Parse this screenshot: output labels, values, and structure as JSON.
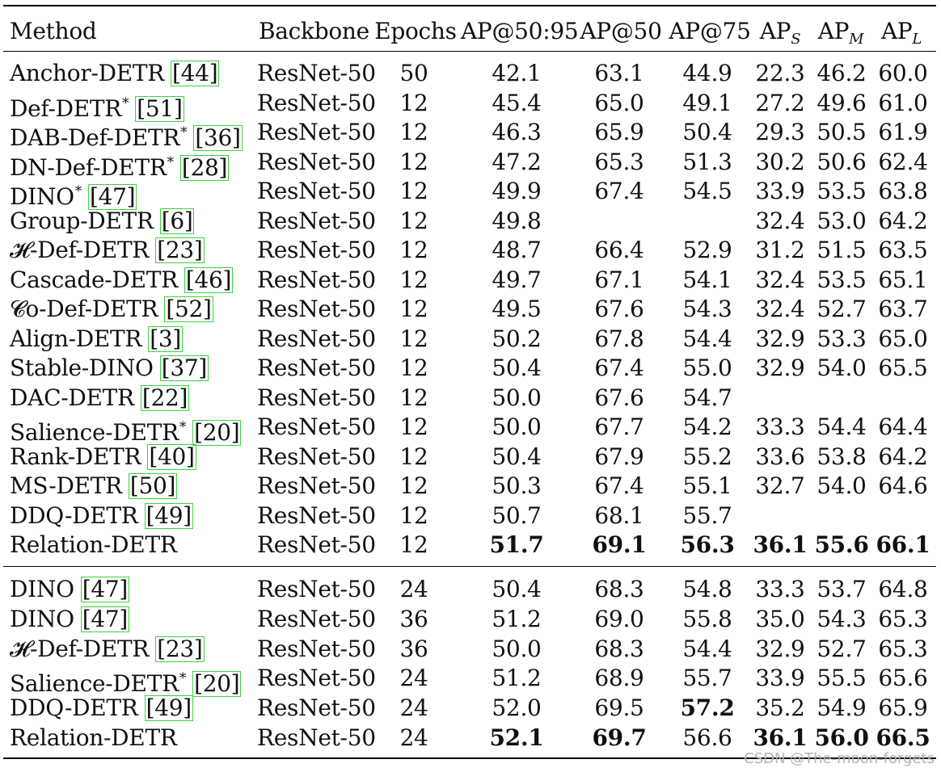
{
  "columns": {
    "method": "Method",
    "backbone": "Backbone",
    "epochs": "Epochs",
    "ap": "AP@50:95",
    "ap50": "AP@50",
    "ap75": "AP@75",
    "aps_base": "AP",
    "aps_sub": "S",
    "apm_base": "AP",
    "apm_sub": "M",
    "apl_base": "AP",
    "apl_sub": "L"
  },
  "group1": [
    {
      "method": "Anchor-DETR",
      "star": false,
      "ref": "44",
      "backbone": "ResNet-50",
      "epochs": "50",
      "ap": "42.1",
      "ap50": "63.1",
      "ap75": "44.9",
      "aps": "22.3",
      "apm": "46.2",
      "apl": "60.0"
    },
    {
      "method": "Def-DETR",
      "star": true,
      "ref": "51",
      "backbone": "ResNet-50",
      "epochs": "12",
      "ap": "45.4",
      "ap50": "65.0",
      "ap75": "49.1",
      "aps": "27.2",
      "apm": "49.6",
      "apl": "61.0"
    },
    {
      "method": "DAB-Def-DETR",
      "star": true,
      "ref": "36",
      "backbone": "ResNet-50",
      "epochs": "12",
      "ap": "46.3",
      "ap50": "65.9",
      "ap75": "50.4",
      "aps": "29.3",
      "apm": "50.5",
      "apl": "61.9"
    },
    {
      "method": "DN-Def-DETR",
      "star": true,
      "ref": "28",
      "backbone": "ResNet-50",
      "epochs": "12",
      "ap": "47.2",
      "ap50": "65.3",
      "ap75": "51.3",
      "aps": "30.2",
      "apm": "50.6",
      "apl": "62.4"
    },
    {
      "method": "DINO",
      "star": true,
      "ref": "47",
      "backbone": "ResNet-50",
      "epochs": "12",
      "ap": "49.9",
      "ap50": "67.4",
      "ap75": "54.5",
      "aps": "33.9",
      "apm": "53.5",
      "apl": "63.8"
    },
    {
      "method": "Group-DETR",
      "star": false,
      "ref": "6",
      "backbone": "ResNet-50",
      "epochs": "12",
      "ap": "49.8",
      "ap50": "",
      "ap75": "",
      "aps": "32.4",
      "apm": "53.0",
      "apl": "64.2"
    },
    {
      "method": "𝓗-Def-DETR",
      "star": false,
      "ref": "23",
      "backbone": "ResNet-50",
      "epochs": "12",
      "ap": "48.7",
      "ap50": "66.4",
      "ap75": "52.9",
      "aps": "31.2",
      "apm": "51.5",
      "apl": "63.5"
    },
    {
      "method": "Cascade-DETR",
      "star": false,
      "ref": "46",
      "backbone": "ResNet-50",
      "epochs": "12",
      "ap": "49.7",
      "ap50": "67.1",
      "ap75": "54.1",
      "aps": "32.4",
      "apm": "53.5",
      "apl": "65.1"
    },
    {
      "method": "𝓒o-Def-DETR",
      "star": false,
      "ref": "52",
      "backbone": "ResNet-50",
      "epochs": "12",
      "ap": "49.5",
      "ap50": "67.6",
      "ap75": "54.3",
      "aps": "32.4",
      "apm": "52.7",
      "apl": "63.7"
    },
    {
      "method": "Align-DETR",
      "star": false,
      "ref": "3",
      "backbone": "ResNet-50",
      "epochs": "12",
      "ap": "50.2",
      "ap50": "67.8",
      "ap75": "54.4",
      "aps": "32.9",
      "apm": "53.3",
      "apl": "65.0"
    },
    {
      "method": "Stable-DINO",
      "star": false,
      "ref": "37",
      "backbone": "ResNet-50",
      "epochs": "12",
      "ap": "50.4",
      "ap50": "67.4",
      "ap75": "55.0",
      "aps": "32.9",
      "apm": "54.0",
      "apl": "65.5"
    },
    {
      "method": "DAC-DETR",
      "star": false,
      "ref": "22",
      "backbone": "ResNet-50",
      "epochs": "12",
      "ap": "50.0",
      "ap50": "67.6",
      "ap75": "54.7",
      "aps": "",
      "apm": "",
      "apl": ""
    },
    {
      "method": "Salience-DETR",
      "star": true,
      "ref": "20",
      "backbone": "ResNet-50",
      "epochs": "12",
      "ap": "50.0",
      "ap50": "67.7",
      "ap75": "54.2",
      "aps": "33.3",
      "apm": "54.4",
      "apl": "64.4"
    },
    {
      "method": "Rank-DETR",
      "star": false,
      "ref": "40",
      "backbone": "ResNet-50",
      "epochs": "12",
      "ap": "50.4",
      "ap50": "67.9",
      "ap75": "55.2",
      "aps": "33.6",
      "apm": "53.8",
      "apl": "64.2"
    },
    {
      "method": "MS-DETR",
      "star": false,
      "ref": "50",
      "backbone": "ResNet-50",
      "epochs": "12",
      "ap": "50.3",
      "ap50": "67.4",
      "ap75": "55.1",
      "aps": "32.7",
      "apm": "54.0",
      "apl": "64.6"
    },
    {
      "method": "DDQ-DETR",
      "star": false,
      "ref": "49",
      "backbone": "ResNet-50",
      "epochs": "12",
      "ap": "50.7",
      "ap50": "68.1",
      "ap75": "55.7",
      "aps": "",
      "apm": "",
      "apl": ""
    },
    {
      "method": "Relation-DETR",
      "star": false,
      "ref": "",
      "backbone": "ResNet-50",
      "epochs": "12",
      "ap": "51.7",
      "ap50": "69.1",
      "ap75": "56.3",
      "aps": "36.1",
      "apm": "55.6",
      "apl": "66.1",
      "bold": [
        "ap",
        "ap50",
        "ap75",
        "aps",
        "apm",
        "apl"
      ]
    }
  ],
  "group2": [
    {
      "method": "DINO",
      "star": false,
      "ref": "47",
      "backbone": "ResNet-50",
      "epochs": "24",
      "ap": "50.4",
      "ap50": "68.3",
      "ap75": "54.8",
      "aps": "33.3",
      "apm": "53.7",
      "apl": "64.8"
    },
    {
      "method": "DINO",
      "star": false,
      "ref": "47",
      "backbone": "ResNet-50",
      "epochs": "36",
      "ap": "51.2",
      "ap50": "69.0",
      "ap75": "55.8",
      "aps": "35.0",
      "apm": "54.3",
      "apl": "65.3"
    },
    {
      "method": "𝓗-Def-DETR",
      "star": false,
      "ref": "23",
      "backbone": "ResNet-50",
      "epochs": "36",
      "ap": "50.0",
      "ap50": "68.3",
      "ap75": "54.4",
      "aps": "32.9",
      "apm": "52.7",
      "apl": "65.3"
    },
    {
      "method": "Salience-DETR",
      "star": true,
      "ref": "20",
      "backbone": "ResNet-50",
      "epochs": "24",
      "ap": "51.2",
      "ap50": "68.9",
      "ap75": "55.7",
      "aps": "33.9",
      "apm": "55.5",
      "apl": "65.6"
    },
    {
      "method": "DDQ-DETR",
      "star": false,
      "ref": "49",
      "backbone": "ResNet-50",
      "epochs": "24",
      "ap": "52.0",
      "ap50": "69.5",
      "ap75": "57.2",
      "aps": "35.2",
      "apm": "54.9",
      "apl": "65.9",
      "bold": [
        "ap75"
      ]
    },
    {
      "method": "Relation-DETR",
      "star": false,
      "ref": "",
      "backbone": "ResNet-50",
      "epochs": "24",
      "ap": "52.1",
      "ap50": "69.7",
      "ap75": "56.6",
      "aps": "36.1",
      "apm": "56.0",
      "apl": "66.5",
      "bold": [
        "ap",
        "ap50",
        "aps",
        "apm",
        "apl"
      ]
    }
  ],
  "star_symbol": "*",
  "watermark": "CSDN @The-moon-forgets"
}
